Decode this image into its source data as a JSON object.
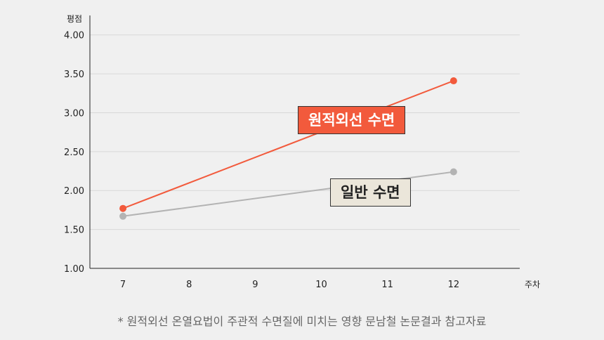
{
  "chart_data": {
    "type": "line",
    "title": "",
    "xlabel": "주차",
    "ylabel": "평점",
    "x": [
      7,
      8,
      9,
      10,
      11,
      12
    ],
    "xlim": [
      6.5,
      13
    ],
    "ylim": [
      1.0,
      4.25
    ],
    "yticks": [
      "1.00",
      "1.50",
      "2.00",
      "2.50",
      "3.00",
      "3.50",
      "4.00"
    ],
    "grid": true,
    "series": [
      {
        "name": "원적외선 수면",
        "color": "#f25a3c",
        "points": [
          [
            7,
            1.77
          ],
          [
            12,
            3.41
          ]
        ]
      },
      {
        "name": "일반 수면",
        "color": "#b3b3b3",
        "points": [
          [
            7,
            1.67
          ],
          [
            12,
            2.24
          ]
        ]
      }
    ],
    "footnote": "* 원적외선 온열요법이 주관적 수면질에 미치는 영향 문남철 논문결과 참고자료"
  }
}
